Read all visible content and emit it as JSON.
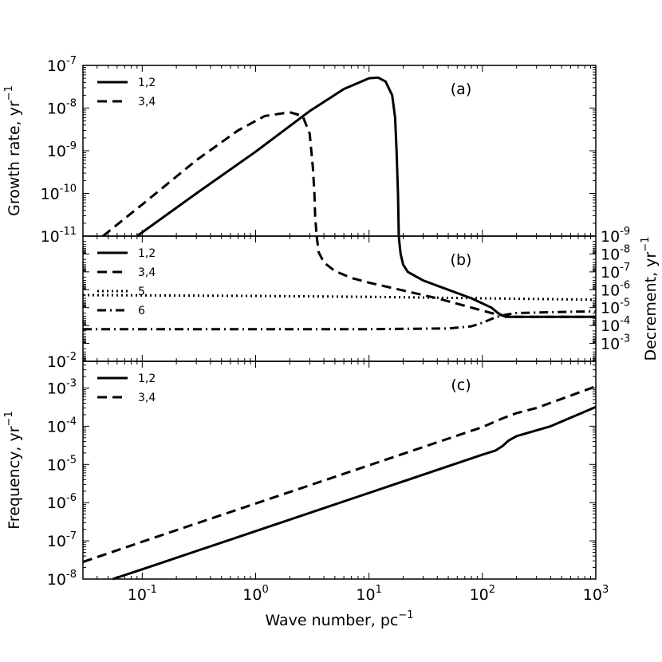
{
  "chart_data": [
    {
      "panel": "a",
      "type": "line",
      "panel_label": "(a)",
      "xlabel": "",
      "ylabel": "Growth rate, yr",
      "ylabel_sup": "−1",
      "x_scale": "log",
      "y_scale": "log",
      "xlim": [
        0.03,
        1000
      ],
      "ylim": [
        1e-11,
        1e-07
      ],
      "yticks": [
        {
          "base": "10",
          "exp": "-11"
        },
        {
          "base": "10",
          "exp": "-10"
        },
        {
          "base": "10",
          "exp": "-9"
        },
        {
          "base": "10",
          "exp": "-8"
        },
        {
          "base": "10",
          "exp": "-7"
        }
      ],
      "legend_position": "top-left",
      "series": [
        {
          "name": "1,2",
          "style": "solid",
          "x": [
            0.09,
            0.3,
            1,
            3,
            6,
            10,
            12,
            14,
            16,
            17,
            17.5,
            18,
            18.3
          ],
          "y": [
            1e-11,
            1e-10,
            9.5e-10,
            8.5e-09,
            2.8e-08,
            5e-08,
            5.2e-08,
            4.2e-08,
            2e-08,
            6e-09,
            1e-09,
            1e-10,
            1e-11
          ]
        },
        {
          "name": "3,4",
          "style": "dashed",
          "x": [
            0.045,
            0.1,
            0.3,
            0.7,
            1.2,
            2,
            2.6,
            3,
            3.2,
            3.3,
            3.35,
            3.45
          ],
          "y": [
            1e-11,
            5.5e-11,
            6e-10,
            3e-09,
            6.5e-09,
            8e-09,
            6.5e-09,
            2.5e-09,
            4e-10,
            1e-10,
            3e-11,
            1e-11
          ]
        }
      ]
    },
    {
      "panel": "b",
      "type": "line",
      "panel_label": "(b)",
      "xlabel": "",
      "ylabel": "Decrement, yr",
      "ylabel_sup": "−1",
      "y_axis_side": "right",
      "x_scale": "log",
      "y_scale": "log",
      "y_inverted": true,
      "xlim": [
        0.03,
        1000
      ],
      "ylim": [
        1e-09,
        0.01
      ],
      "yticks": [
        {
          "base": "10",
          "exp": "-9"
        },
        {
          "base": "10",
          "exp": "-8"
        },
        {
          "base": "10",
          "exp": "-7"
        },
        {
          "base": "10",
          "exp": "-6"
        },
        {
          "base": "10",
          "exp": "-5"
        },
        {
          "base": "10",
          "exp": "-4"
        },
        {
          "base": "10",
          "exp": "-3"
        }
      ],
      "left_tick_label": {
        "base": "10",
        "exp": "-2"
      },
      "legend_position": "top-left",
      "series": [
        {
          "name": "1,2",
          "style": "solid",
          "x": [
            18.3,
            18.6,
            19,
            20,
            22,
            30,
            50,
            80,
            120,
            140,
            160,
            200,
            1000
          ],
          "y": [
            1e-09,
            3e-09,
            1e-08,
            4e-08,
            1e-07,
            3e-07,
            1e-06,
            3e-06,
            1e-05,
            2.2e-05,
            3.3e-05,
            3.3e-05,
            3.3e-05
          ]
        },
        {
          "name": "3,4",
          "style": "dashed",
          "x": [
            3.45,
            3.6,
            4,
            5,
            7,
            10,
            20,
            40,
            80,
            120,
            160,
            200,
            1000
          ],
          "y": [
            1e-09,
            8e-09,
            3e-08,
            9e-08,
            2.2e-07,
            4e-07,
            1.1e-06,
            3e-06,
            1e-05,
            2e-05,
            3e-05,
            3.3e-05,
            3.3e-05
          ]
        },
        {
          "name": "5",
          "style": "dotted",
          "x": [
            0.03,
            1,
            10,
            100,
            1000
          ],
          "y": [
            2e-06,
            2.2e-06,
            2.5e-06,
            3e-06,
            3.6e-06
          ]
        },
        {
          "name": "6",
          "style": "dashdot",
          "x": [
            0.03,
            1,
            10,
            50,
            80,
            100,
            130,
            160,
            200,
            400,
            1000
          ],
          "y": [
            0.00016,
            0.00016,
            0.00016,
            0.000145,
            0.00011,
            7e-05,
            3.5e-05,
            2.5e-05,
            2e-05,
            1.8e-05,
            1.6e-05
          ]
        }
      ]
    },
    {
      "panel": "c",
      "type": "line",
      "panel_label": "(c)",
      "xlabel": "Wave number, pc",
      "xlabel_sup": "−1",
      "ylabel": "Frequency, yr",
      "ylabel_sup": "−1",
      "x_scale": "log",
      "y_scale": "log",
      "xlim": [
        0.03,
        1000
      ],
      "ylim": [
        1e-08,
        0.005
      ],
      "xticks": [
        {
          "base": "10",
          "exp": "-1"
        },
        {
          "base": "10",
          "exp": "0"
        },
        {
          "base": "10",
          "exp": "1"
        },
        {
          "base": "10",
          "exp": "2"
        },
        {
          "base": "10",
          "exp": "3"
        }
      ],
      "yticks": [
        {
          "base": "10",
          "exp": "-8"
        },
        {
          "base": "10",
          "exp": "-7"
        },
        {
          "base": "10",
          "exp": "-6"
        },
        {
          "base": "10",
          "exp": "-5"
        },
        {
          "base": "10",
          "exp": "-4"
        },
        {
          "base": "10",
          "exp": "-3"
        }
      ],
      "legend_position": "top-left",
      "series": [
        {
          "name": "1,2",
          "style": "solid",
          "x": [
            0.055,
            0.1,
            1,
            10,
            100,
            130,
            150,
            170,
            200,
            400,
            1000
          ],
          "y": [
            1e-08,
            1.8e-08,
            1.8e-07,
            1.8e-06,
            1.8e-05,
            2.3e-05,
            3e-05,
            4.2e-05,
            5.5e-05,
            0.0001,
            0.00032
          ]
        },
        {
          "name": "3,4",
          "style": "dashed",
          "x": [
            0.03,
            0.1,
            1,
            10,
            100,
            150,
            200,
            300,
            1000
          ],
          "y": [
            2.8e-08,
            9.5e-08,
            9.5e-07,
            9.5e-06,
            9.5e-05,
            0.00016,
            0.00022,
            0.0003,
            0.0011
          ]
        }
      ]
    }
  ]
}
